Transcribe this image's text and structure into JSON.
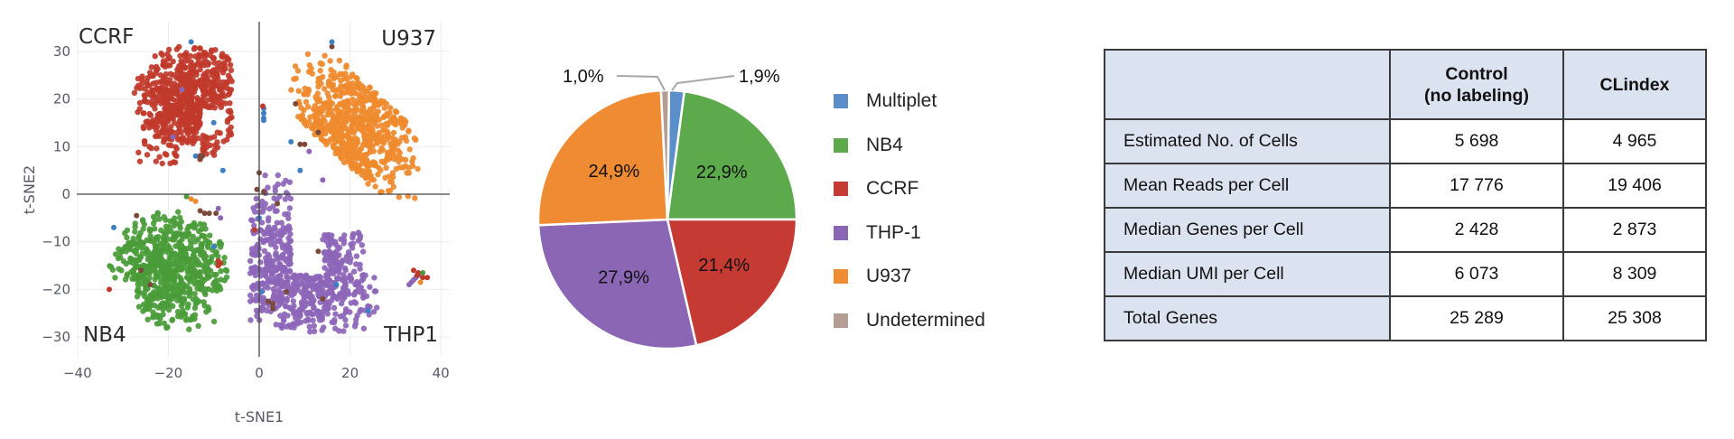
{
  "chart_data": [
    {
      "type": "scatter",
      "title": "",
      "xlabel": "t-SNE1",
      "ylabel": "t-SNE2",
      "xlim": [
        -42,
        40
      ],
      "ylim": [
        -34,
        36
      ],
      "x_ticks": [
        "−40",
        "−20",
        "0",
        "20",
        "40"
      ],
      "x_tick_values": [
        -40,
        -20,
        0,
        20,
        40
      ],
      "y_ticks": [
        "30",
        "20",
        "10",
        "0",
        "−10",
        "−20",
        "−30"
      ],
      "y_tick_values": [
        30,
        20,
        10,
        0,
        -10,
        -20,
        -30
      ],
      "grid": true,
      "quadrant_labels": [
        {
          "text": "CCRF",
          "x": -39,
          "y": 33
        },
        {
          "text": "U937",
          "x": 27,
          "y": 33
        },
        {
          "text": "NB4",
          "x": -38,
          "y": -30
        },
        {
          "text": "THP1",
          "x": 28,
          "y": -30
        }
      ],
      "series": [
        {
          "name": "CCRF",
          "color": "#c0392b",
          "cx": -15,
          "cy": 19,
          "sx": 7,
          "sy": 6.5,
          "n": 700,
          "extent": {
            "x": [
              -28,
              -6
            ],
            "y": [
              6,
              31
            ]
          }
        },
        {
          "name": "U937",
          "color": "#ef8a2e",
          "cx": 21,
          "cy": 14,
          "sx": 7,
          "sy": 8,
          "n": 650,
          "extent": {
            "x": [
              7,
              35
            ],
            "y": [
              -2,
              31
            ]
          }
        },
        {
          "name": "NB4",
          "color": "#4a9c3a",
          "cx": -21,
          "cy": -16,
          "sx": 7,
          "sy": 6,
          "n": 650,
          "extent": {
            "x": [
              -36,
              -7
            ],
            "y": [
              -30,
              -3
            ]
          }
        },
        {
          "name": "THP-1",
          "color": "#8d66b8",
          "cx": 10,
          "cy": -15,
          "sx": 8,
          "sy": 8,
          "n": 700,
          "extent": {
            "x": [
              -2,
              26
            ],
            "y": [
              -29,
              4
            ]
          }
        },
        {
          "name": "Multiplet",
          "color": "#3f7fc4",
          "n": 25
        },
        {
          "name": "Undetermined",
          "color": "#7b4a3a",
          "n": 25
        }
      ]
    },
    {
      "type": "pie",
      "title": "",
      "categories": [
        "Multiplet",
        "NB4",
        "CCRF",
        "THP-1",
        "U937",
        "Undetermined"
      ],
      "values": [
        1.9,
        22.9,
        21.4,
        27.9,
        24.9,
        1.0
      ],
      "labels": [
        "1,9%",
        "22,9%",
        "21,4%",
        "27,9%",
        "24,9%",
        "1,0%"
      ],
      "colors": [
        "#5b8fc9",
        "#5daa4c",
        "#c53b33",
        "#8a66b5",
        "#ef8b33",
        "#b49d92"
      ],
      "legend_position": "right"
    },
    {
      "type": "table",
      "columns": [
        "",
        "Control\n(no labeling)",
        "CLindex"
      ],
      "rows": [
        [
          "Estimated No. of Cells",
          "5 698",
          "4 965"
        ],
        [
          "Mean Reads per Cell",
          "17 776",
          "19 406"
        ],
        [
          "Median Genes per Cell",
          "2 428",
          "2 873"
        ],
        [
          "Median UMI per Cell",
          "6 073",
          "8 309"
        ],
        [
          "Total Genes",
          "25 289",
          "25 308"
        ]
      ]
    }
  ],
  "scatter": {
    "xlabel": "t-SNE1",
    "ylabel": "t-SNE2",
    "x_ticks": [
      "−40",
      "−20",
      "0",
      "20",
      "40"
    ],
    "y_ticks": [
      "30",
      "20",
      "10",
      "0",
      "−10",
      "−20",
      "−30"
    ],
    "labels": {
      "ccrf": "CCRF",
      "u937": "U937",
      "nb4": "NB4",
      "thp1": "THP1"
    }
  },
  "pie": {
    "slices": [
      {
        "name": "Multiplet",
        "label": "1,9%",
        "value": 1.9,
        "color": "#5b8fc9"
      },
      {
        "name": "NB4",
        "label": "22,9%",
        "value": 22.9,
        "color": "#5daa4c"
      },
      {
        "name": "CCRF",
        "label": "21,4%",
        "value": 21.4,
        "color": "#c53b33"
      },
      {
        "name": "THP-1",
        "label": "27,9%",
        "value": 27.9,
        "color": "#8a66b5"
      },
      {
        "name": "U937",
        "label": "24,9%",
        "value": 24.9,
        "color": "#ef8b33"
      },
      {
        "name": "Undetermined",
        "label": "1,0%",
        "value": 1.0,
        "color": "#b49d92"
      }
    ],
    "legend": [
      {
        "label": "Multiplet",
        "color": "#5b8fc9"
      },
      {
        "label": "NB4",
        "color": "#5daa4c"
      },
      {
        "label": "CCRF",
        "color": "#c53b33"
      },
      {
        "label": "THP-1",
        "color": "#8a66b5"
      },
      {
        "label": "U937",
        "color": "#ef8b33"
      },
      {
        "label": "Undetermined",
        "color": "#b49d92"
      }
    ]
  },
  "table": {
    "header": {
      "col0": "",
      "col1_line1": "Control",
      "col1_line2": "(no labeling)",
      "col2": "CLindex"
    },
    "rows": [
      {
        "label": "Estimated No. of Cells",
        "control": "5 698",
        "clindex": "4 965"
      },
      {
        "label": "Mean Reads per Cell",
        "control": "17 776",
        "clindex": "19 406"
      },
      {
        "label": "Median Genes per Cell",
        "control": "2 428",
        "clindex": "2 873"
      },
      {
        "label": "Median UMI per Cell",
        "control": "6 073",
        "clindex": "8 309"
      },
      {
        "label": "Total Genes",
        "control": "25 289",
        "clindex": "25 308"
      }
    ]
  }
}
